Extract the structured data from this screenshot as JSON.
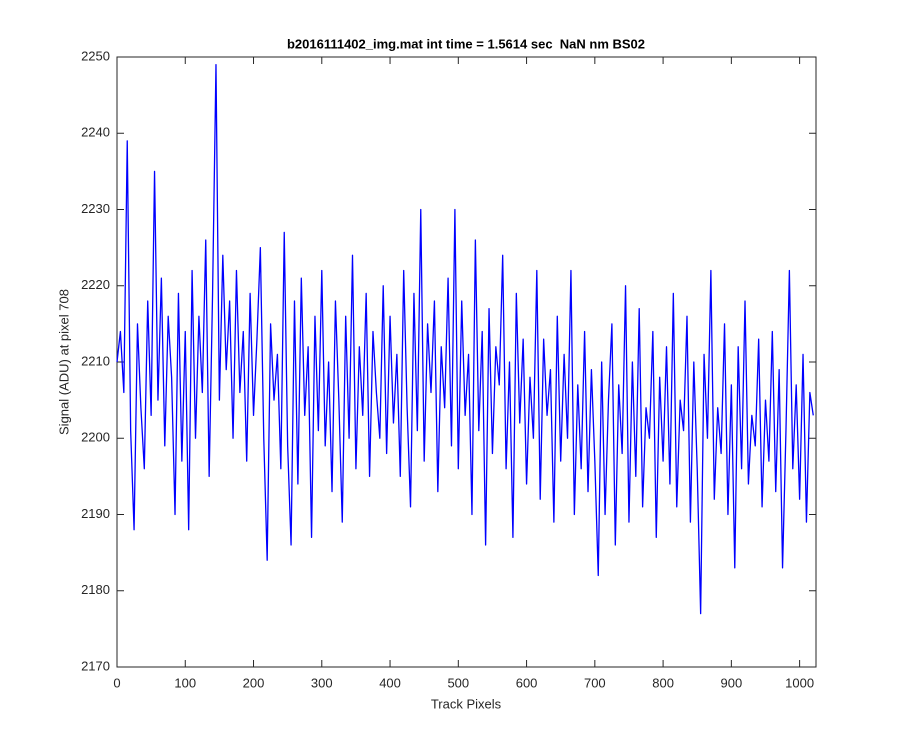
{
  "chart_data": {
    "type": "line",
    "title": "b2016111402_img.mat int time = 1.5614 sec  NaN nm BS02",
    "xlabel": "Track Pixels",
    "ylabel": "Signal (ADU) at pixel 708",
    "xlim": [
      0,
      1024
    ],
    "ylim": [
      2170,
      2250
    ],
    "xticks": [
      0,
      100,
      200,
      300,
      400,
      500,
      600,
      700,
      800,
      900,
      1000
    ],
    "yticks": [
      2170,
      2180,
      2190,
      2200,
      2210,
      2220,
      2230,
      2240,
      2250
    ],
    "grid": false,
    "x": [
      0,
      5,
      10,
      15,
      20,
      25,
      30,
      35,
      40,
      45,
      50,
      55,
      60,
      65,
      70,
      75,
      80,
      85,
      90,
      95,
      100,
      105,
      110,
      115,
      120,
      125,
      130,
      135,
      140,
      145,
      150,
      155,
      160,
      165,
      170,
      175,
      180,
      185,
      190,
      195,
      200,
      205,
      210,
      215,
      220,
      225,
      230,
      235,
      240,
      245,
      250,
      255,
      260,
      265,
      270,
      275,
      280,
      285,
      290,
      295,
      300,
      305,
      310,
      315,
      320,
      325,
      330,
      335,
      340,
      345,
      350,
      355,
      360,
      365,
      370,
      375,
      380,
      385,
      390,
      395,
      400,
      405,
      410,
      415,
      420,
      425,
      430,
      435,
      440,
      445,
      450,
      455,
      460,
      465,
      470,
      475,
      480,
      485,
      490,
      495,
      500,
      505,
      510,
      515,
      520,
      525,
      530,
      535,
      540,
      545,
      550,
      555,
      560,
      565,
      570,
      575,
      580,
      585,
      590,
      595,
      600,
      605,
      610,
      615,
      620,
      625,
      630,
      635,
      640,
      645,
      650,
      655,
      660,
      665,
      670,
      675,
      680,
      685,
      690,
      695,
      700,
      705,
      710,
      715,
      720,
      725,
      730,
      735,
      740,
      745,
      750,
      755,
      760,
      765,
      770,
      775,
      780,
      785,
      790,
      795,
      800,
      805,
      810,
      815,
      820,
      825,
      830,
      835,
      840,
      845,
      850,
      855,
      860,
      865,
      870,
      875,
      880,
      885,
      890,
      895,
      900,
      905,
      910,
      915,
      920,
      925,
      930,
      935,
      940,
      945,
      950,
      955,
      960,
      965,
      970,
      975,
      980,
      985,
      990,
      995,
      1000,
      1005,
      1010,
      1015,
      1020
    ],
    "series": [
      {
        "name": "Signal",
        "color": "#0000ff",
        "values": [
          2210,
          2214,
          2206,
          2239,
          2201,
          2188,
          2215,
          2204,
          2196,
          2218,
          2203,
          2235,
          2205,
          2221,
          2199,
          2216,
          2208,
          2190,
          2219,
          2197,
          2214,
          2188,
          2222,
          2200,
          2216,
          2206,
          2226,
          2195,
          2219,
          2249,
          2205,
          2224,
          2209,
          2218,
          2200,
          2222,
          2206,
          2214,
          2197,
          2219,
          2203,
          2213,
          2225,
          2200,
          2184,
          2215,
          2205,
          2211,
          2196,
          2227,
          2199,
          2186,
          2218,
          2194,
          2221,
          2203,
          2212,
          2187,
          2216,
          2201,
          2222,
          2199,
          2210,
          2193,
          2218,
          2205,
          2189,
          2216,
          2200,
          2224,
          2196,
          2212,
          2203,
          2219,
          2195,
          2214,
          2206,
          2200,
          2220,
          2198,
          2216,
          2202,
          2211,
          2195,
          2222,
          2204,
          2191,
          2219,
          2201,
          2230,
          2197,
          2215,
          2206,
          2218,
          2193,
          2212,
          2204,
          2221,
          2199,
          2230,
          2196,
          2218,
          2203,
          2211,
          2190,
          2226,
          2201,
          2214,
          2186,
          2217,
          2198,
          2212,
          2207,
          2224,
          2196,
          2210,
          2187,
          2219,
          2202,
          2213,
          2194,
          2208,
          2200,
          2222,
          2192,
          2213,
          2203,
          2209,
          2189,
          2216,
          2197,
          2211,
          2200,
          2222,
          2190,
          2207,
          2196,
          2214,
          2193,
          2209,
          2197,
          2182,
          2210,
          2190,
          2205,
          2215,
          2186,
          2207,
          2198,
          2220,
          2189,
          2210,
          2195,
          2217,
          2191,
          2204,
          2200,
          2214,
          2187,
          2208,
          2197,
          2212,
          2194,
          2219,
          2191,
          2205,
          2201,
          2216,
          2189,
          2210,
          2196,
          2177,
          2211,
          2200,
          2222,
          2192,
          2204,
          2198,
          2215,
          2190,
          2207,
          2183,
          2212,
          2196,
          2218,
          2194,
          2203,
          2199,
          2213,
          2191,
          2205,
          2197,
          2214,
          2193,
          2209,
          2183,
          2201,
          2222,
          2196,
          2207,
          2192,
          2211,
          2189,
          2206,
          2203
        ]
      }
    ]
  }
}
